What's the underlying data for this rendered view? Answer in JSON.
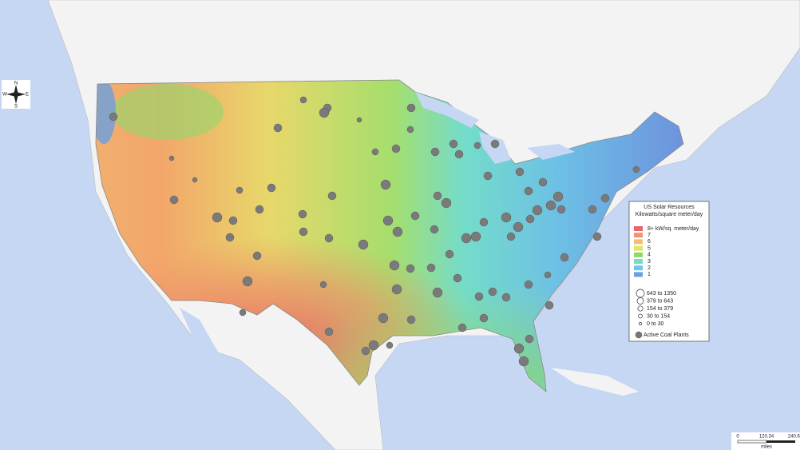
{
  "compass": {
    "n": "N",
    "s": "S",
    "e": "E",
    "w": "W"
  },
  "legend": {
    "title": "US Solar Resources",
    "subtitle": "Kilowatts/square meter/day",
    "solar_classes": [
      {
        "label": "8+ kW/sq. meter/day",
        "color": "#e8646e"
      },
      {
        "label": "7",
        "color": "#f0956a"
      },
      {
        "label": "6",
        "color": "#f3bd72"
      },
      {
        "label": "5",
        "color": "#e2e26c"
      },
      {
        "label": "4",
        "color": "#8fd96c"
      },
      {
        "label": "3",
        "color": "#72dccf"
      },
      {
        "label": "2",
        "color": "#6fc7ea"
      },
      {
        "label": "1",
        "color": "#6d9fe0"
      }
    ],
    "plant_sizes": [
      {
        "label": "643 to 1350"
      },
      {
        "label": "379 to  643"
      },
      {
        "label": "154 to  379"
      },
      {
        "label": "30 to  154"
      },
      {
        "label": "0 to   30"
      }
    ],
    "coal_plants": "Active Coal Plants"
  },
  "scale_bar": {
    "ticks": [
      "0",
      "120.34",
      "240.67"
    ],
    "unit": "miles"
  }
}
